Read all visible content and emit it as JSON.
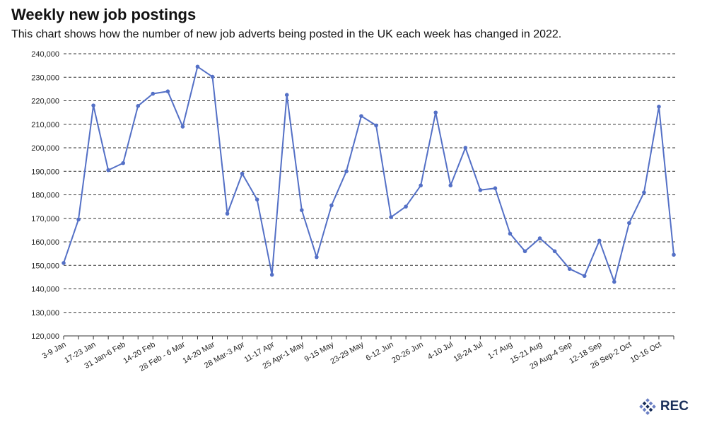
{
  "chart_data": {
    "type": "line",
    "title": "Weekly new job postings",
    "subtitle": "This chart shows how the number of new job adverts being posted in the UK each week has changed in 2022.",
    "xlabel": "",
    "ylabel": "",
    "ylim": [
      120000,
      240000
    ],
    "yticks": [
      "120,000",
      "130,000",
      "140,000",
      "150,000",
      "160,000",
      "170,000",
      "180,000",
      "190,000",
      "200,000",
      "210,000",
      "220,000",
      "230,000",
      "240,000"
    ],
    "grid": "horizontal-dashed",
    "line_color": "#5470c6",
    "x_tick_labels": [
      "3-9 Jan",
      "17-23 Jan",
      "31 Jan-6 Feb",
      "14-20 Feb",
      "28 Feb - 6 Mar",
      "14-20 Mar",
      "28 Mar-3 Apr",
      "11-17 Apr",
      "25 Apr-1 May",
      "9-15 May",
      "23-29 May",
      "6-12 Jun",
      "20-26 Jun",
      "4-10 Jul",
      "18-24 Jul",
      "1-7 Aug",
      "15-21 Aug",
      "29 Aug-4 Sep",
      "12-18 Sep",
      "26 Sep-2 Oct",
      "10-16 Oct"
    ],
    "values": [
      151000,
      169500,
      218000,
      190500,
      193500,
      217800,
      223000,
      224000,
      209000,
      234500,
      230200,
      172000,
      189000,
      178000,
      146000,
      222500,
      173500,
      153500,
      175500,
      190000,
      213500,
      209500,
      170500,
      175000,
      184000,
      215000,
      184000,
      200000,
      182000,
      182800,
      163500,
      156000,
      161500,
      156000,
      148500,
      145500,
      160500,
      143000,
      168000,
      181000,
      217500,
      154500
    ]
  },
  "logo": {
    "text": "REC",
    "color": "#1a2f5a",
    "accent": "#6b7fc4"
  }
}
